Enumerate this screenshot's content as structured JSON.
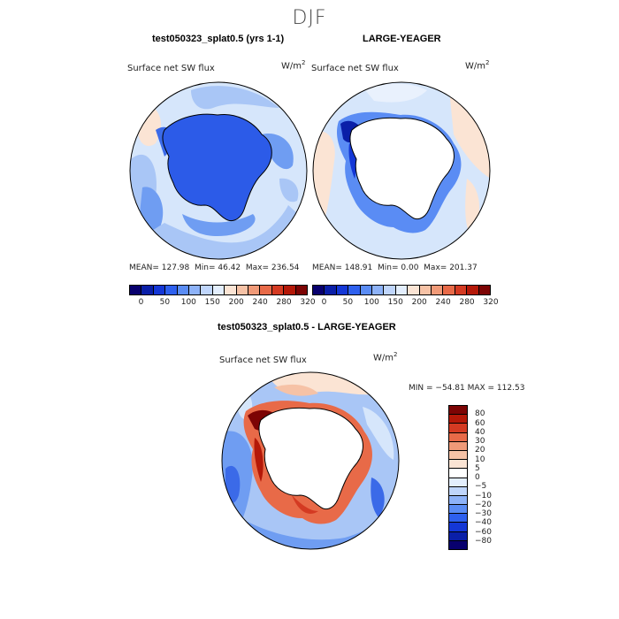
{
  "season": "DJF",
  "panels": [
    {
      "title": "test050323_splat0.5 (yrs 1-1)",
      "variable": "Surface net SW flux",
      "units_base": "W/m",
      "units_exp": "2",
      "stats": {
        "mean_label": "MEAN=",
        "mean": "127.98",
        "min_label": "Min=",
        "min": "46.42",
        "max_label": "Max=",
        "max": "236.54"
      }
    },
    {
      "title": "LARGE-YEAGER",
      "variable": "Surface net SW flux",
      "units_base": "W/m",
      "units_exp": "2",
      "stats": {
        "mean_label": "MEAN=",
        "mean": "148.91",
        "min_label": "Min=",
        "min": "0.00",
        "max_label": "Max=",
        "max": "201.37"
      }
    },
    {
      "title": "test050323_splat0.5 - LARGE-YEAGER",
      "variable": "Surface net SW flux",
      "units_base": "W/m",
      "units_exp": "2",
      "stats_text": "MIN = −54.81  MAX = 112.53"
    }
  ],
  "top_colorbar": {
    "colors": [
      "#08006e",
      "#0a1fa8",
      "#1437d6",
      "#2e60ee",
      "#5a8cf4",
      "#8db2f8",
      "#bfd5fb",
      "#e3eefd",
      "#fbe4d4",
      "#f6c2a6",
      "#f09a78",
      "#e86a48",
      "#d43a22",
      "#b41808",
      "#7c0404"
    ],
    "ticks": [
      "0",
      "50",
      "100",
      "150",
      "200",
      "240",
      "280",
      "320"
    ]
  },
  "diff_colorbar": {
    "colors_top_to_bottom": [
      "#7c0404",
      "#b41808",
      "#d43a22",
      "#e86a48",
      "#f09a78",
      "#f6c2a6",
      "#fbe4d4",
      "#ffffff",
      "#e3eefd",
      "#bfd5fb",
      "#8db2f8",
      "#5a8cf4",
      "#2e60ee",
      "#1437d6",
      "#0a1fa8",
      "#08006e"
    ],
    "ticks": [
      "80",
      "60",
      "40",
      "30",
      "20",
      "10",
      "5",
      "0",
      "−5",
      "−10",
      "−20",
      "−30",
      "−40",
      "−60",
      "−80"
    ]
  },
  "map_colors": {
    "ocean_light": "#d6e6fb",
    "ocean_pale": "#e9f1fd",
    "ocean_mid": "#a9c6f6",
    "ocean_blue": "#6f9df2",
    "ocean_deep": "#3b6ae8",
    "antarctica_blue": "#2c5be8",
    "land_white": "#ffffff",
    "warm_pale": "#fbe4d4",
    "warm_light": "#f6c2a6",
    "warm_mid": "#e86a48",
    "warm_dark": "#b41808",
    "dark_red": "#7c0404",
    "dark_blue": "#0a1fa8"
  }
}
